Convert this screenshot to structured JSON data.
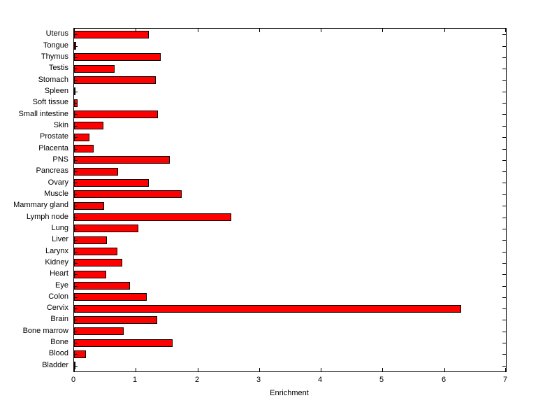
{
  "chart_data": {
    "type": "bar",
    "orientation": "horizontal",
    "title": "",
    "xlabel": "Enrichment",
    "ylabel": "",
    "xlim": [
      0,
      7
    ],
    "xticks": [
      0,
      1,
      2,
      3,
      4,
      5,
      6,
      7
    ],
    "grid": false,
    "legend": false,
    "bar_color": "#ff0000",
    "bar_edge_color": "#000000",
    "axis_color": "#000000",
    "background_color": "#ffffff",
    "categories_top_to_bottom": [
      "Uterus",
      "Tongue",
      "Thymus",
      "Testis",
      "Stomach",
      "Spleen",
      "Soft tissue",
      "Small intestine",
      "Skin",
      "Prostate",
      "Placenta",
      "PNS",
      "Pancreas",
      "Ovary",
      "Muscle",
      "Mammary gland",
      "Lymph node",
      "Lung",
      "Liver",
      "Larynx",
      "Kidney",
      "Heart",
      "Eye",
      "Colon",
      "Cervix",
      "Brain",
      "Bone marrow",
      "Bone",
      "Blood",
      "Bladder"
    ],
    "values": [
      1.21,
      0.03,
      1.4,
      0.66,
      1.32,
      0.02,
      0.06,
      1.36,
      0.48,
      0.25,
      0.32,
      1.55,
      0.71,
      1.21,
      1.74,
      0.49,
      2.55,
      1.04,
      0.53,
      0.7,
      0.78,
      0.52,
      0.91,
      1.18,
      6.28,
      1.35,
      0.8,
      1.6,
      0.19,
      0.02
    ]
  }
}
